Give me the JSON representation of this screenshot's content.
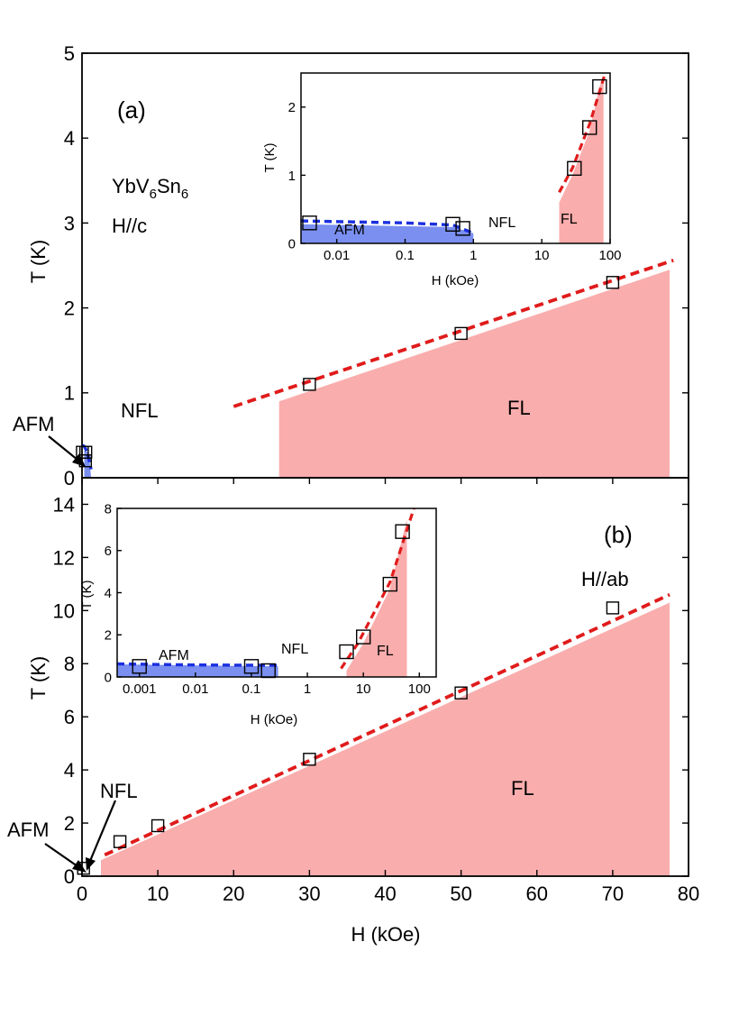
{
  "chart_data": [
    {
      "id": "a-main",
      "panel_label": "(a)",
      "type": "scatter",
      "xlabel": "",
      "ylabel": "T (K)",
      "xlim": [
        0,
        80
      ],
      "ylim": [
        0,
        5
      ],
      "xticks": [],
      "yticks": [
        0,
        1,
        2,
        3,
        4,
        5
      ],
      "material": "YbV6Sn6",
      "field_direction": "H//c",
      "points": [
        {
          "x": 0.05,
          "y": 0.3
        },
        {
          "x": 0.45,
          "y": 0.2
        },
        {
          "x": 0.5,
          "y": 0.3
        },
        {
          "x": 30,
          "y": 1.1
        },
        {
          "x": 50,
          "y": 1.7
        },
        {
          "x": 70,
          "y": 2.3
        }
      ],
      "fl_fit": {
        "x": [
          20,
          78
        ],
        "y": [
          0.84,
          2.56
        ]
      },
      "fl_region": [
        [
          26,
          0
        ],
        [
          26,
          0.9
        ],
        [
          77.5,
          2.45
        ],
        [
          77.5,
          0
        ]
      ],
      "afm_fit": [
        [
          0.05,
          0.38
        ],
        [
          0.3,
          0.37
        ],
        [
          0.7,
          0.3
        ],
        [
          1.2,
          0.1
        ]
      ],
      "afm_region": [
        [
          0.3,
          0
        ],
        [
          0.3,
          0.32
        ],
        [
          0.9,
          0.3
        ],
        [
          1.2,
          0
        ]
      ],
      "labels": {
        "NFL": "NFL",
        "FL": "FL",
        "AFM": "AFM"
      }
    },
    {
      "id": "a-inset",
      "type": "scatter",
      "xscale": "log",
      "xlabel": "H (kOe)",
      "ylabel": "T (K)",
      "xlim": [
        0.003,
        100
      ],
      "ylim": [
        0,
        2.5
      ],
      "xticks": [
        "0.01",
        "0.1",
        "1",
        "10",
        "100"
      ],
      "yticks": [
        0,
        1,
        2
      ],
      "points": [
        {
          "x": 0.004,
          "y": 0.3
        },
        {
          "x": 0.5,
          "y": 0.28
        },
        {
          "x": 0.7,
          "y": 0.22
        },
        {
          "x": 30,
          "y": 1.1
        },
        {
          "x": 50,
          "y": 1.7
        },
        {
          "x": 70,
          "y": 2.3
        }
      ],
      "fl_fit": [
        [
          18,
          0.75
        ],
        [
          28,
          1.1
        ],
        [
          50,
          1.75
        ],
        [
          85,
          2.5
        ]
      ],
      "fl_region": [
        [
          18,
          0
        ],
        [
          18,
          0.6
        ],
        [
          28,
          1.0
        ],
        [
          50,
          1.65
        ],
        [
          70,
          2.3
        ],
        [
          80,
          2.45
        ],
        [
          80,
          0
        ]
      ],
      "afm_fit": [
        [
          0.003,
          0.33
        ],
        [
          0.1,
          0.3
        ],
        [
          0.5,
          0.27
        ],
        [
          1.0,
          0.15
        ]
      ],
      "afm_region": [
        [
          0.003,
          0
        ],
        [
          0.003,
          0.28
        ],
        [
          0.5,
          0.24
        ],
        [
          1.0,
          0.15
        ],
        [
          1.0,
          0
        ]
      ],
      "labels": {
        "AFM": "AFM",
        "NFL": "NFL",
        "FL": "FL"
      }
    },
    {
      "id": "b-main",
      "panel_label": "(b)",
      "type": "scatter",
      "xlabel": "H (kOe)",
      "ylabel": "T (K)",
      "xlim": [
        0,
        80
      ],
      "ylim": [
        0,
        15
      ],
      "xticks": [
        0,
        10,
        20,
        30,
        40,
        50,
        60,
        70,
        80
      ],
      "yticks": [
        0,
        2,
        4,
        6,
        8,
        10,
        12,
        14
      ],
      "field_direction": "H//ab",
      "points": [
        {
          "x": 0.2,
          "y": 0.3
        },
        {
          "x": 5,
          "y": 1.3
        },
        {
          "x": 10,
          "y": 1.9
        },
        {
          "x": 30,
          "y": 4.4
        },
        {
          "x": 50,
          "y": 6.9
        },
        {
          "x": 70,
          "y": 10.1
        }
      ],
      "fl_fit": {
        "x": [
          3,
          77.5
        ],
        "y": [
          0.8,
          10.6
        ]
      },
      "fl_region": [
        [
          2.5,
          0
        ],
        [
          2.5,
          0.6
        ],
        [
          77.5,
          10.3
        ],
        [
          77.5,
          0
        ]
      ],
      "labels": {
        "NFL": "NFL",
        "FL": "FL",
        "AFM": "AFM"
      }
    },
    {
      "id": "b-inset",
      "type": "scatter",
      "xscale": "log",
      "xlabel": "H (kOe)",
      "ylabel": "T (K)",
      "xlim": [
        0.0004,
        200
      ],
      "ylim": [
        0,
        8
      ],
      "xticks": [
        "0.001",
        "0.01",
        "0.1",
        "1",
        "10",
        "100"
      ],
      "yticks": [
        0,
        2,
        4,
        6,
        8
      ],
      "points": [
        {
          "x": 0.001,
          "y": 0.5
        },
        {
          "x": 0.1,
          "y": 0.5
        },
        {
          "x": 0.2,
          "y": 0.3
        },
        {
          "x": 5,
          "y": 1.2
        },
        {
          "x": 10,
          "y": 1.9
        },
        {
          "x": 30,
          "y": 4.4
        },
        {
          "x": 50,
          "y": 6.9
        }
      ],
      "fl_fit": [
        [
          4,
          0.4
        ],
        [
          8,
          1.6
        ],
        [
          30,
          4.5
        ],
        [
          80,
          8.0
        ]
      ],
      "fl_region": [
        [
          5,
          0
        ],
        [
          5,
          0.3
        ],
        [
          10,
          1.6
        ],
        [
          30,
          4.2
        ],
        [
          60,
          7.5
        ],
        [
          60,
          0
        ]
      ],
      "afm_fit": [
        [
          0.0004,
          0.62
        ],
        [
          0.01,
          0.57
        ],
        [
          0.3,
          0.55
        ]
      ],
      "afm_region": [
        [
          0.0004,
          0
        ],
        [
          0.0004,
          0.6
        ],
        [
          0.3,
          0.5
        ],
        [
          0.3,
          0
        ]
      ],
      "labels": {
        "AFM": "AFM",
        "NFL": "NFL",
        "FL": "FL"
      }
    }
  ],
  "colors": {
    "fl_fill": "#faadad",
    "fl_line": "#e01b1b",
    "afm_fill": "#7a8ff0",
    "afm_line": "#1a2fe0",
    "marker": "#000000"
  }
}
